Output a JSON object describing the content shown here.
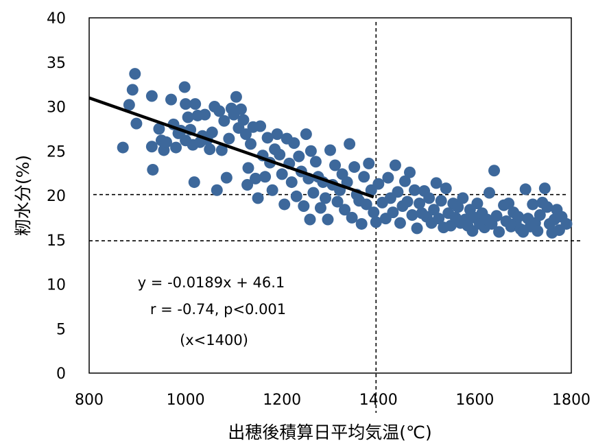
{
  "chart_data": {
    "type": "scatter",
    "xlabel": "出穂後積算日平均気温(℃)",
    "ylabel": "籾水分(%)",
    "xlim": [
      800,
      1800
    ],
    "ylim": [
      0,
      40
    ],
    "x_ticks": [
      "800",
      "1000",
      "1200",
      "1400",
      "1600",
      "1800"
    ],
    "y_ticks": [
      "0",
      "5",
      "10",
      "15",
      "20",
      "25",
      "30",
      "35",
      "40"
    ],
    "grid": false,
    "marker_color": "#3d689b",
    "regression": {
      "slope": -0.0189,
      "intercept": 46.1,
      "x_range": [
        800,
        1390
      ]
    },
    "reference_lines": {
      "x": 1395,
      "y": [
        20.1,
        14.9
      ]
    },
    "annotations": [
      "y = -0.0189x + 46.1",
      "r = -0.74, p<0.001",
      "(x<1400)"
    ],
    "points": [
      [
        870,
        25.4
      ],
      [
        883,
        30.2
      ],
      [
        890,
        31.9
      ],
      [
        895,
        33.7
      ],
      [
        898,
        28.1
      ],
      [
        930,
        31.2
      ],
      [
        932,
        22.9
      ],
      [
        930,
        25.5
      ],
      [
        945,
        27.5
      ],
      [
        950,
        26.2
      ],
      [
        955,
        25.1
      ],
      [
        960,
        26.0
      ],
      [
        970,
        30.8
      ],
      [
        975,
        28.0
      ],
      [
        980,
        25.4
      ],
      [
        985,
        27.0
      ],
      [
        990,
        27.3
      ],
      [
        998,
        32.2
      ],
      [
        1000,
        30.3
      ],
      [
        1000,
        26.2
      ],
      [
        1005,
        28.8
      ],
      [
        1010,
        27.4
      ],
      [
        1015,
        25.7
      ],
      [
        1018,
        21.5
      ],
      [
        1020,
        30.3
      ],
      [
        1025,
        29.0
      ],
      [
        1030,
        26.0
      ],
      [
        1035,
        26.7
      ],
      [
        1040,
        29.1
      ],
      [
        1045,
        26.3
      ],
      [
        1050,
        25.2
      ],
      [
        1055,
        27.1
      ],
      [
        1060,
        30.0
      ],
      [
        1065,
        20.6
      ],
      [
        1070,
        29.5
      ],
      [
        1075,
        25.1
      ],
      [
        1080,
        28.4
      ],
      [
        1085,
        22.0
      ],
      [
        1090,
        26.4
      ],
      [
        1095,
        29.8
      ],
      [
        1100,
        29.1
      ],
      [
        1105,
        31.1
      ],
      [
        1110,
        27.6
      ],
      [
        1115,
        29.7
      ],
      [
        1120,
        28.5
      ],
      [
        1125,
        26.9
      ],
      [
        1128,
        21.2
      ],
      [
        1130,
        23.1
      ],
      [
        1135,
        25.8
      ],
      [
        1140,
        27.7
      ],
      [
        1145,
        21.9
      ],
      [
        1150,
        19.7
      ],
      [
        1155,
        27.8
      ],
      [
        1160,
        24.5
      ],
      [
        1165,
        22.1
      ],
      [
        1170,
        26.5
      ],
      [
        1175,
        23.7
      ],
      [
        1180,
        20.6
      ],
      [
        1185,
        25.2
      ],
      [
        1190,
        26.9
      ],
      [
        1195,
        24.6
      ],
      [
        1200,
        22.4
      ],
      [
        1205,
        19.0
      ],
      [
        1210,
        26.4
      ],
      [
        1215,
        23.6
      ],
      [
        1220,
        21.5
      ],
      [
        1225,
        25.9
      ],
      [
        1230,
        19.9
      ],
      [
        1235,
        24.4
      ],
      [
        1240,
        22.7
      ],
      [
        1245,
        18.8
      ],
      [
        1250,
        26.9
      ],
      [
        1255,
        21.9
      ],
      [
        1258,
        17.3
      ],
      [
        1260,
        25.0
      ],
      [
        1265,
        20.3
      ],
      [
        1270,
        23.8
      ],
      [
        1275,
        22.1
      ],
      [
        1280,
        18.6
      ],
      [
        1285,
        21.5
      ],
      [
        1290,
        19.7
      ],
      [
        1295,
        17.3
      ],
      [
        1300,
        25.1
      ],
      [
        1305,
        21.2
      ],
      [
        1310,
        23.4
      ],
      [
        1315,
        19.3
      ],
      [
        1320,
        20.6
      ],
      [
        1325,
        22.4
      ],
      [
        1330,
        18.4
      ],
      [
        1335,
        21.5
      ],
      [
        1340,
        25.8
      ],
      [
        1345,
        17.5
      ],
      [
        1350,
        23.2
      ],
      [
        1355,
        20.1
      ],
      [
        1360,
        19.4
      ],
      [
        1365,
        16.8
      ],
      [
        1370,
        22.1
      ],
      [
        1375,
        19.0
      ],
      [
        1380,
        23.6
      ],
      [
        1385,
        20.6
      ],
      [
        1390,
        18.1
      ],
      [
        1395,
        17.0
      ],
      [
        1400,
        21.3
      ],
      [
        1408,
        19.2
      ],
      [
        1415,
        17.4
      ],
      [
        1420,
        22.0
      ],
      [
        1425,
        19.7
      ],
      [
        1430,
        18.1
      ],
      [
        1435,
        23.4
      ],
      [
        1440,
        20.4
      ],
      [
        1445,
        16.9
      ],
      [
        1450,
        18.8
      ],
      [
        1455,
        21.6
      ],
      [
        1460,
        19.3
      ],
      [
        1465,
        22.6
      ],
      [
        1470,
        17.8
      ],
      [
        1475,
        20.6
      ],
      [
        1480,
        16.3
      ],
      [
        1485,
        19.1
      ],
      [
        1490,
        18.0
      ],
      [
        1495,
        20.5
      ],
      [
        1500,
        17.6
      ],
      [
        1505,
        19.7
      ],
      [
        1510,
        16.9
      ],
      [
        1515,
        18.4
      ],
      [
        1520,
        21.4
      ],
      [
        1525,
        17.4
      ],
      [
        1530,
        19.4
      ],
      [
        1535,
        16.4
      ],
      [
        1540,
        20.8
      ],
      [
        1545,
        18.0
      ],
      [
        1550,
        16.6
      ],
      [
        1555,
        19.1
      ],
      [
        1560,
        17.5
      ],
      [
        1565,
        18.7
      ],
      [
        1570,
        16.9
      ],
      [
        1575,
        19.7
      ],
      [
        1580,
        17.3
      ],
      [
        1585,
        16.6
      ],
      [
        1590,
        18.4
      ],
      [
        1595,
        16.0
      ],
      [
        1600,
        17.5
      ],
      [
        1605,
        19.1
      ],
      [
        1610,
        16.8
      ],
      [
        1615,
        18.0
      ],
      [
        1620,
        16.4
      ],
      [
        1625,
        17.3
      ],
      [
        1630,
        20.3
      ],
      [
        1635,
        16.8
      ],
      [
        1640,
        22.8
      ],
      [
        1645,
        17.7
      ],
      [
        1650,
        15.9
      ],
      [
        1660,
        18.9
      ],
      [
        1665,
        17.1
      ],
      [
        1670,
        19.1
      ],
      [
        1675,
        16.5
      ],
      [
        1680,
        18.1
      ],
      [
        1685,
        16.9
      ],
      [
        1690,
        17.6
      ],
      [
        1695,
        16.2
      ],
      [
        1700,
        15.9
      ],
      [
        1705,
        20.7
      ],
      [
        1710,
        17.4
      ],
      [
        1715,
        16.5
      ],
      [
        1720,
        19.0
      ],
      [
        1725,
        16.9
      ],
      [
        1730,
        16.0
      ],
      [
        1735,
        17.8
      ],
      [
        1740,
        19.2
      ],
      [
        1745,
        20.8
      ],
      [
        1750,
        18.7
      ],
      [
        1755,
        16.8
      ],
      [
        1760,
        15.8
      ],
      [
        1765,
        17.3
      ],
      [
        1770,
        18.4
      ],
      [
        1775,
        16.1
      ],
      [
        1780,
        17.6
      ],
      [
        1790,
        16.8
      ]
    ]
  }
}
